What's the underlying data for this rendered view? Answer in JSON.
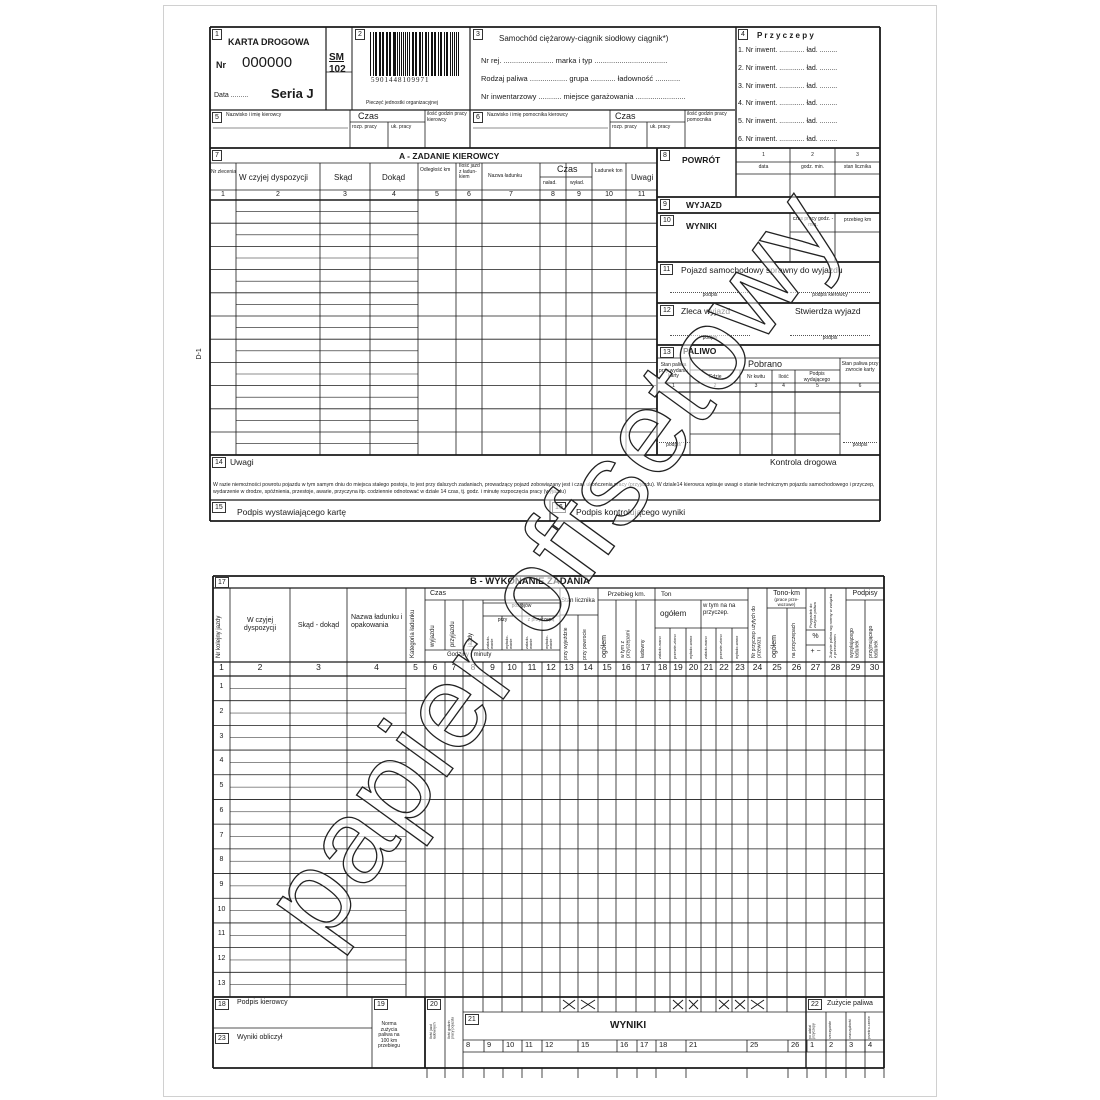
{
  "watermark": "papier offsetowy",
  "side_label": "D-1",
  "top": {
    "box1": {
      "num": "1",
      "title": "KARTA DROGOWA",
      "nr_label": "Nr",
      "nr_value": "000000",
      "data_label": "Data .........",
      "seria": "Seria J",
      "sm": "SM",
      "sm_num": "102"
    },
    "box2": {
      "num": "2",
      "barcode": "5901448109971",
      "stamp": "Pieczęć jednostki organizacyjnej"
    },
    "box3": {
      "num": "3",
      "title": "Samochód ciężarowy-ciągnik siodłowy ciągnik*)",
      "lines": [
        "Nr rej. ........................ marka i typ ...................................",
        "Rodzaj paliwa .................. grupa ............ ładowność ............",
        "Nr inwentarzowy ........... miejsce garażowania ........................"
      ]
    },
    "box4": {
      "num": "4",
      "title": "P r z y c z e p y",
      "items": [
        "1. Nr inwent. ............. ład. .........",
        "2. Nr inwent. ............. ład. .........",
        "3. Nr inwent. ............. ład. .........",
        "4. Nr inwent. ............. ład. .........",
        "5. Nr inwent. ............. ład. .........",
        "6. Nr inwent. ............. ład. ........."
      ]
    },
    "box5": {
      "num": "5",
      "label": "Nazwisko i imię kierowcy",
      "czas": "Czas",
      "start": "rozp. pracy",
      "end": "uk. pracy",
      "hours": "ilość godzin pracy kierowcy"
    },
    "box6": {
      "num": "6",
      "label": "Nazwisko i imię pomocnika kierowcy",
      "czas": "Czas",
      "start": "rozp. pracy",
      "end": "uk. pracy",
      "hours": "ilość godzin pracy pomocnika"
    },
    "section7": {
      "num": "7",
      "title": "A - ZADANIE KIEROWCY",
      "czas": "Czas",
      "headers": [
        "Nr zlecenia",
        "W czyjej dyspozycji",
        "Skąd",
        "Dokąd",
        "Odległość km",
        "Ilość jazd z ładun-kiem",
        "Nazwa ładunku",
        "naład.",
        "wyład.",
        "Ładunek ton",
        "Uwagi"
      ],
      "col_numbers": [
        "1",
        "2",
        "3",
        "4",
        "5",
        "6",
        "7",
        "8",
        "9",
        "10",
        "11"
      ]
    },
    "section8": {
      "num": "8",
      "title": "POWRÓT",
      "cols": [
        {
          "n": "1",
          "label": "data"
        },
        {
          "n": "2",
          "label": "godz. min."
        },
        {
          "n": "3",
          "label": "stan licznika"
        }
      ]
    },
    "section9": {
      "num": "9",
      "title": "WYJAZD"
    },
    "section10": {
      "num": "10",
      "title": "WYNIKI",
      "cols": [
        "czas pracy godz. - min.",
        "przebieg km"
      ]
    },
    "section11": {
      "num": "11",
      "title": "Pojazd samochodowy sprawny do wyjazdu",
      "sign1": "podpis",
      "sign2": "podpis kierowcy"
    },
    "section12": {
      "num": "12",
      "left": "Zleca wyjazd",
      "right": "Stwierdza wyjazd",
      "sign1": "podpis",
      "sign2": "podpis"
    },
    "section13": {
      "num": "13",
      "title": "PALIWO",
      "pobrano": "Pobrano",
      "headers": [
        "Stan paliwa przy wydaniu karty",
        "Gdzie",
        "Nr kwitu",
        "Ilość",
        "Podpis wydającego",
        "Stan paliwa przy zwrocie karty"
      ],
      "col_numbers": [
        "1",
        "2",
        "3",
        "4",
        "5",
        "6"
      ],
      "sign": "podpis"
    },
    "section14": {
      "num": "14",
      "title": "Uwagi",
      "right": "Kontrola drogowa",
      "notice": "W razie niemożności powrotu pojazdu w tym samym dniu do miejsca stałego postoju, to jest przy dalszych zadaniach, prowadzący pojazd zobowiązany jest i czas ukończenia pracy (przyjazdu). W dziale14 kierowca wpisuje uwagi o stanie technicznym pojazdu samochodowego i przyczep, wydarzenie w drodze, spóźnienia, przestoje, awarie, przyczyna itp. codziennie odnotować w dziale 14 czas, tj. godz. i minutę rozpoczęcia pracy (wyjazdu)"
    },
    "section15": {
      "num": "15",
      "label": "Podpis wystawiającego kartę"
    },
    "section16": {
      "num": "16",
      "label": "Podpis kontrolującego wyniki"
    }
  },
  "bottom": {
    "num": "17",
    "title": "B - WYKONANIE ZADANIA",
    "headers": {
      "nr": "Nr kolejny jazdy",
      "dyspozycja": "W czyjej dyspozycji",
      "skad": "Skąd - dokąd",
      "ladunek": "Nazwa ładunku i opakowania",
      "kategoria": "Kategoria ładunku",
      "czas": "Czas",
      "wyjazdu": "wyjazdu",
      "przyjazdu": "przyjazdu",
      "jazdy": "jazdy",
      "postojow": "postojów",
      "przy": "przy",
      "z_przyczepa": "z przyczepą",
      "zal1": "załado-wanie",
      "wyl1": "wyłado-wanie",
      "zal2": "załado-wanie",
      "wyl2": "wyłado-wanie",
      "godziny": "Godziny i minuty",
      "stan": "Stan licznika",
      "przy_wyjezdzie": "przy wyjeździe",
      "przy_powrocie": "przy powrocie",
      "przebieg": "Przebieg km.",
      "ogolem": "ogółem",
      "w_tym_przyczepa": "w tym z przyczepami",
      "ladowny": "ładowny",
      "ton": "Ton",
      "ton_ogolem": "ogółem",
      "w_tym_na": "w tym na na przyczep.",
      "ton_sub": [
        "załado-wano",
        "przewie-ziono",
        "wyłado-wano",
        "załado-wano",
        "przewie-ziono",
        "wyłado-wano"
      ],
      "nr_przyczep": "Nr przyczep użytych do przewozu",
      "tonokm": "Tono-km",
      "tonokm_sub": "(prace prze-wozowe)",
      "tonokm_ogolem": "ogółem",
      "na_przyczepach": "na przyczepach",
      "przypadek": "Przypadek do zużycia paliwa",
      "percent": "%",
      "plusminus": "+ −",
      "zuzycie_norma": "Zużycie paliwa wg normy w związku z przewozem",
      "podpisy": "Podpisy",
      "wysylajacego": "wysyłającego ładunek",
      "przyjmujacego": "przyjmującego ładunek"
    },
    "col_numbers": [
      "1",
      "2",
      "3",
      "4",
      "5",
      "6",
      "7",
      "8",
      "9",
      "10",
      "11",
      "12",
      "13",
      "14",
      "15",
      "16",
      "17",
      "18",
      "19",
      "20",
      "21",
      "22",
      "23",
      "24",
      "25",
      "26",
      "27",
      "28",
      "29",
      "30"
    ],
    "row_numbers": [
      "1",
      "2",
      "3",
      "4",
      "5",
      "6",
      "7",
      "8",
      "9",
      "10",
      "11",
      "12",
      "13"
    ],
    "footer": {
      "n18": "18",
      "podpis_kierowcy": "Podpis kierowcy",
      "n19": "19",
      "norma": "Norma zużycia paliwa na 100 km przebiegu",
      "n20": "20",
      "ilosc_jazd": "Ilość jazd ładownych",
      "ilosc_godzin": "Ilość godzin pracy pojazdu",
      "n21": "21",
      "wyniki": "WYNIKI",
      "n22": "22",
      "zuzycie": "Zużycie paliwa",
      "zuzycie_sub": [
        "po udział przyczepy",
        "rzeczywiste",
        "oszczędność",
        "przekro-czenie"
      ],
      "n23": "23",
      "wyniki_obliczyl": "Wyniki obliczył",
      "numbers": [
        "8",
        "9",
        "10",
        "11",
        "12",
        "15",
        "16",
        "17",
        "18",
        "21",
        "25",
        "26",
        "1",
        "2",
        "3",
        "4"
      ]
    }
  }
}
